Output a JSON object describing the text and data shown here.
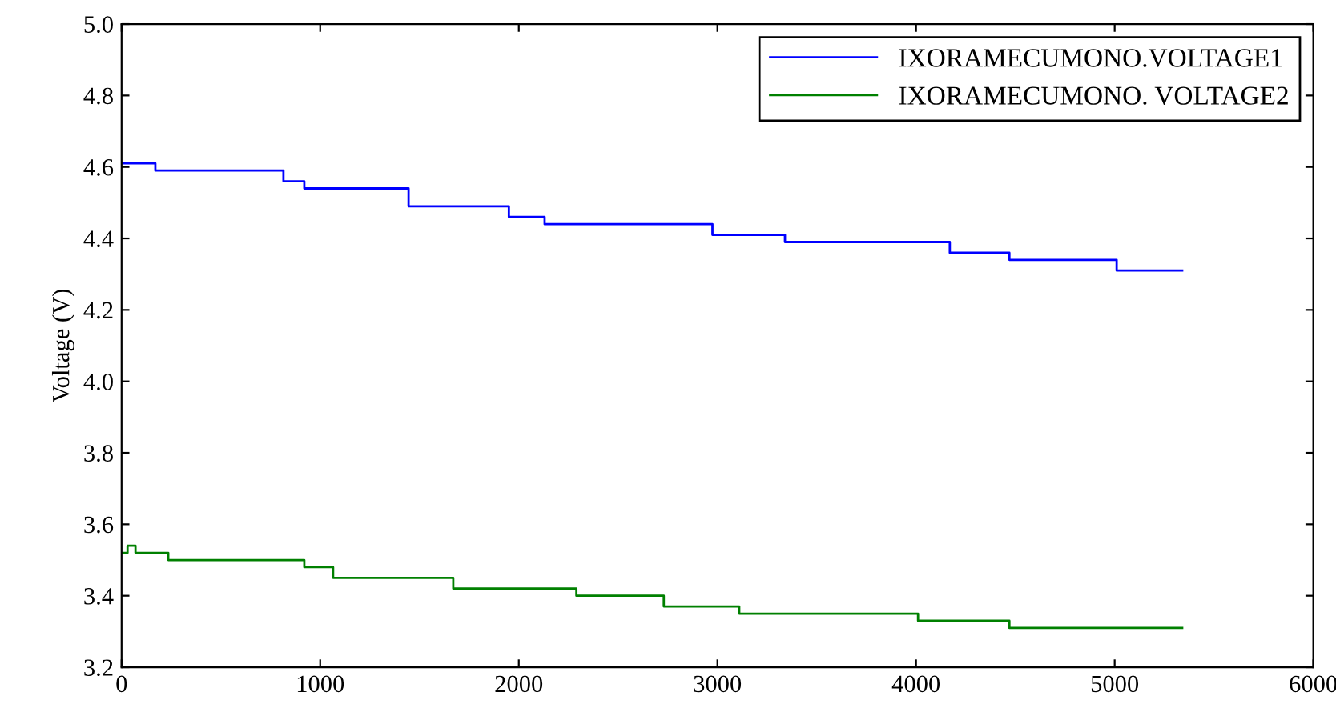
{
  "chart_data": {
    "type": "step",
    "ylabel": "Voltage (V)",
    "xlim": [
      0,
      6000
    ],
    "xticks": [
      0,
      1000,
      2000,
      3000,
      4000,
      5000,
      6000
    ],
    "ylim": [
      3.2,
      5.0
    ],
    "yticks": [
      {
        "value": 3.2,
        "label": "3.2"
      },
      {
        "value": 3.4,
        "label": "3.4"
      },
      {
        "value": 3.6,
        "label": "3.6"
      },
      {
        "value": 3.8,
        "label": "3.8"
      },
      {
        "value": 4.0,
        "label": "4.0"
      },
      {
        "value": 4.2,
        "label": "4.2"
      },
      {
        "value": 4.4,
        "label": "4.4"
      },
      {
        "value": 4.6,
        "label": "4.6"
      },
      {
        "value": 4.8,
        "label": "4.8"
      },
      {
        "value": 5.0,
        "label": "5.0"
      }
    ],
    "grid": false,
    "legend": "top right",
    "marker": "none",
    "line_style": "solid",
    "series": [
      {
        "name": "IXORAMECUMONO.VOLTAGE1",
        "color": "#0000ff",
        "x": [
          0,
          170,
          815,
          920,
          1445,
          1950,
          2130,
          2975,
          3340,
          4170,
          4470,
          5010,
          5340
        ],
        "values": [
          4.61,
          4.59,
          4.56,
          4.54,
          4.49,
          4.46,
          4.44,
          4.41,
          4.39,
          4.36,
          4.34,
          4.31,
          4.31
        ]
      },
      {
        "name": "IXORAMECUMONO. VOLTAGE2",
        "color": "#008000",
        "x": [
          0,
          30,
          70,
          235,
          920,
          1065,
          1670,
          2290,
          2730,
          3110,
          4010,
          4470,
          5340
        ],
        "values": [
          3.52,
          3.54,
          3.52,
          3.5,
          3.48,
          3.45,
          3.42,
          3.4,
          3.37,
          3.35,
          3.33,
          3.31,
          3.31
        ]
      }
    ]
  }
}
